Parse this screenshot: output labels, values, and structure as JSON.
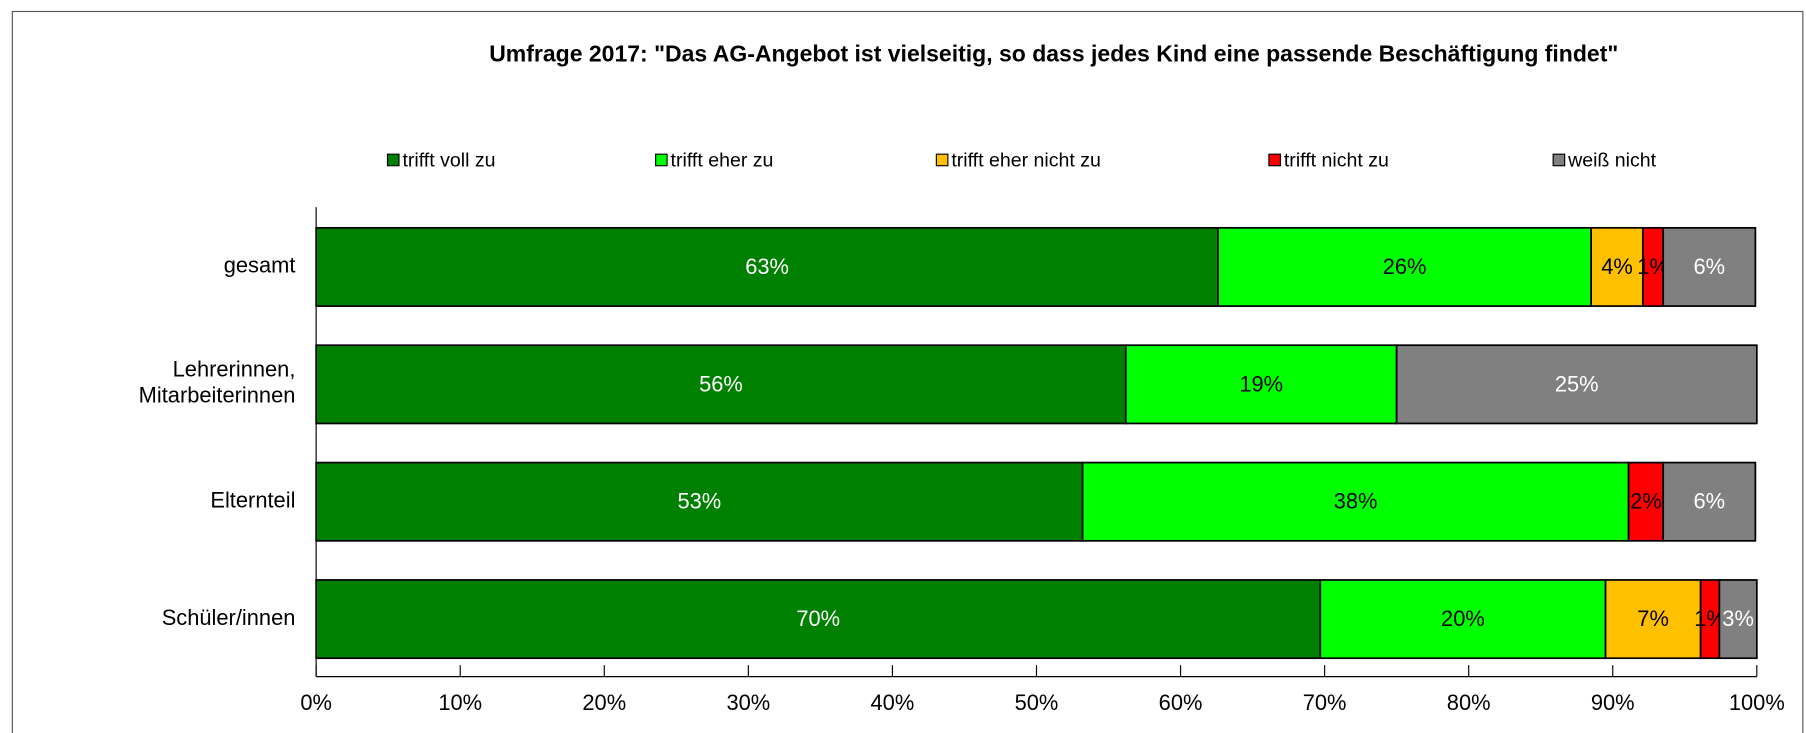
{
  "chart_data": {
    "type": "stacked_barh",
    "title": "Umfrage 2017: \"Das AG-Angebot ist vielseitig, so dass jedes Kind eine passende Beschäftigung findet\"",
    "categories": [
      "gesamt",
      "Lehrerinnen, Mitarbeiterinnen",
      "Elternteil",
      "Schüler/innen"
    ],
    "series": [
      {
        "name": "trifft voll zu",
        "color": "#008000",
        "label_color": "#ffffff",
        "values": [
          62.6,
          56.2,
          53.2,
          69.7
        ],
        "value_labels": [
          "63%",
          "56%",
          "53%",
          "70%"
        ]
      },
      {
        "name": "trifft eher zu",
        "color": "#00ff00",
        "label_color": "#000000",
        "values": [
          25.9,
          18.8,
          37.9,
          19.8
        ],
        "value_labels": [
          "26%",
          "19%",
          "38%",
          "20%"
        ]
      },
      {
        "name": "trifft eher nicht zu",
        "color": "#ffc000",
        "label_color": "#000000",
        "values": [
          3.6,
          0,
          0,
          6.6
        ],
        "value_labels": [
          "4%",
          null,
          null,
          "7%"
        ]
      },
      {
        "name": "trifft nicht zu",
        "color": "#ff0000",
        "label_color": "#000000",
        "values": [
          1.4,
          0,
          2.4,
          1.3
        ],
        "value_labels": [
          "1%",
          null,
          "2%",
          "1%"
        ]
      },
      {
        "name": "weiß nicht",
        "color": "#808080",
        "label_color": "#ffffff",
        "values": [
          6.4,
          25.0,
          6.4,
          2.6
        ],
        "value_labels": [
          "6%",
          "25%",
          "6%",
          "3%"
        ]
      }
    ],
    "xlim": [
      0,
      100
    ],
    "xticks": [
      {
        "value": 0,
        "label": "0%"
      },
      {
        "value": 10,
        "label": "10%"
      },
      {
        "value": 20,
        "label": "20%"
      },
      {
        "value": 30,
        "label": "30%"
      },
      {
        "value": 40,
        "label": "40%"
      },
      {
        "value": 50,
        "label": "50%"
      },
      {
        "value": 60,
        "label": "60%"
      },
      {
        "value": 70,
        "label": "70%"
      },
      {
        "value": 80,
        "label": "80%"
      },
      {
        "value": 90,
        "label": "90%"
      },
      {
        "value": 100,
        "label": "100%"
      }
    ],
    "legend": "top"
  }
}
